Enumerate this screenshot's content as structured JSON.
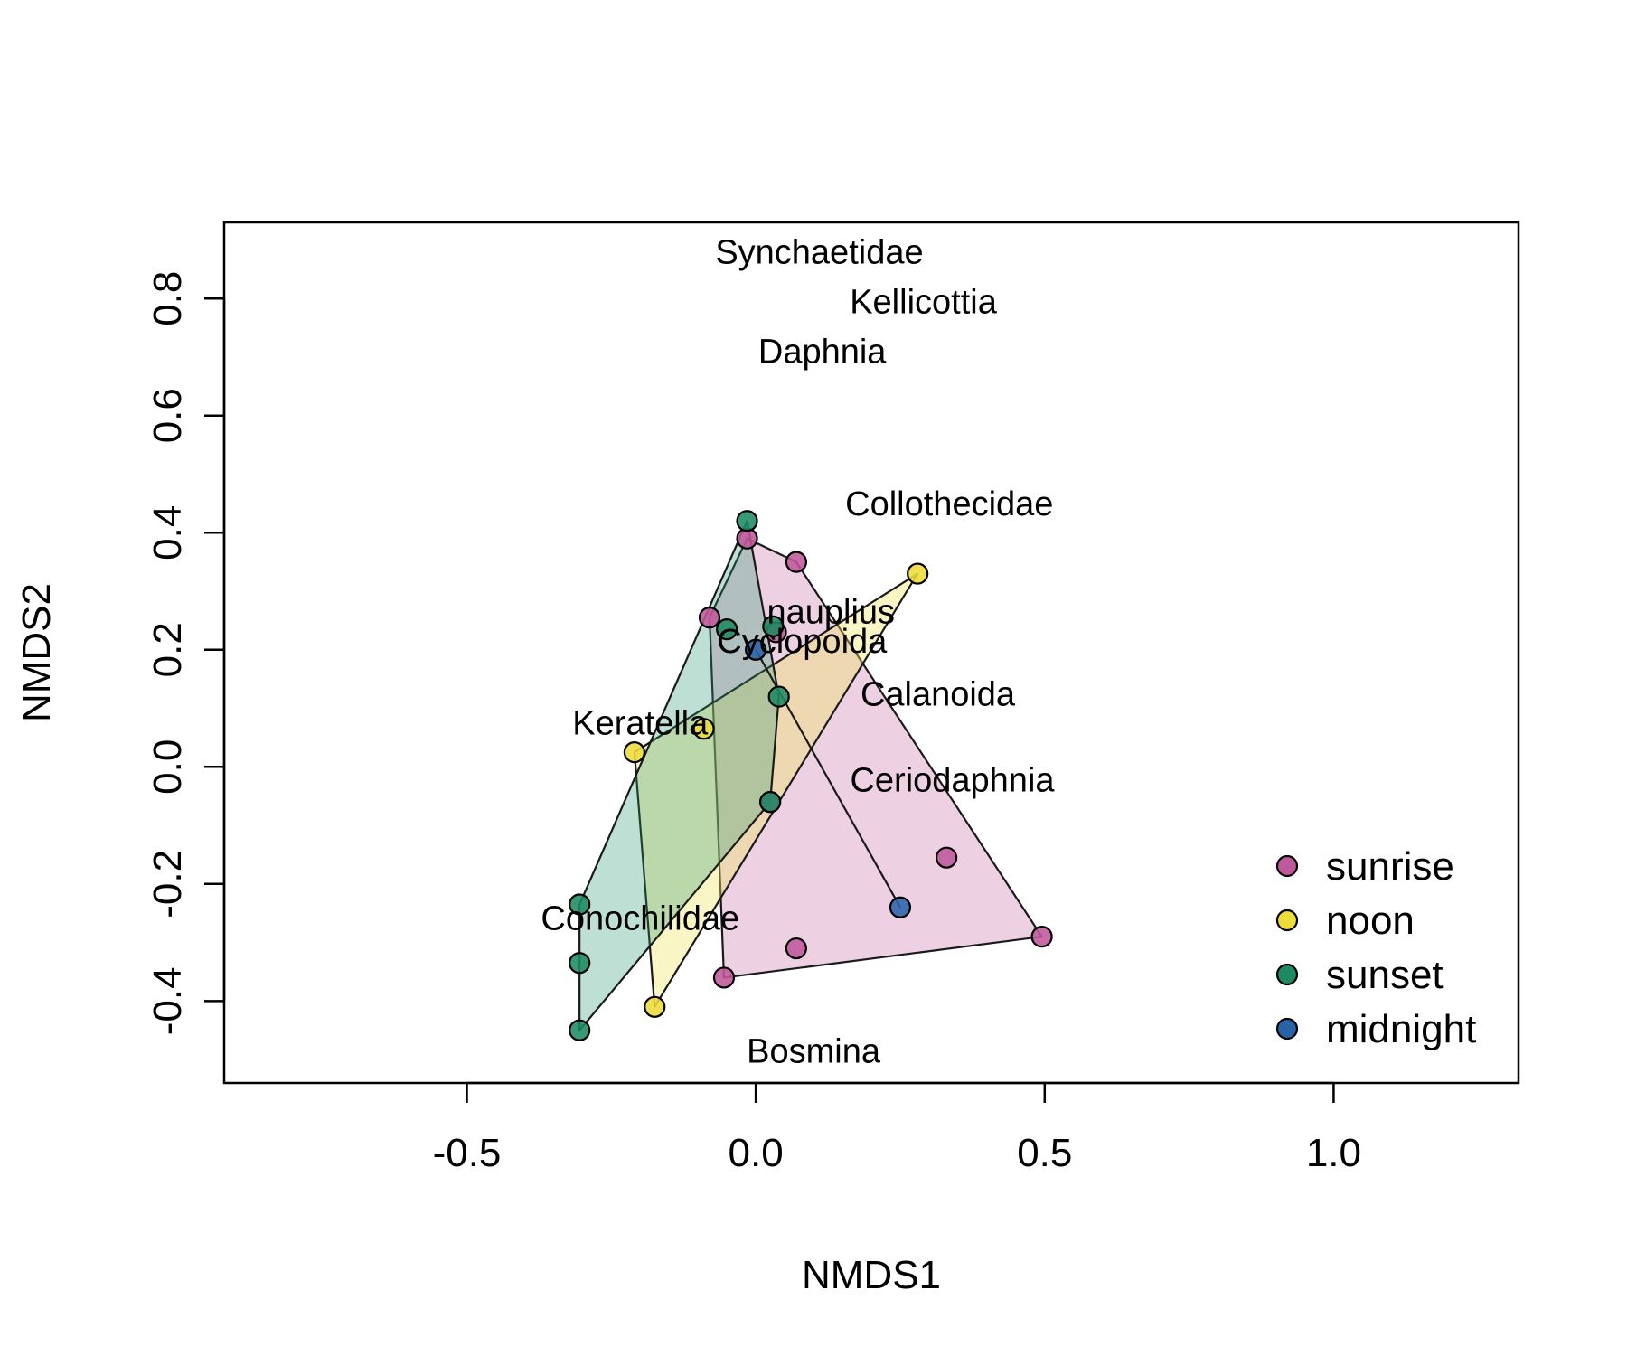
{
  "chart_data": {
    "type": "scatter",
    "xlabel": "NMDS1",
    "ylabel": "NMDS2",
    "xlim": [
      -0.92,
      1.32
    ],
    "ylim": [
      -0.54,
      0.93
    ],
    "xticks": [
      -0.5,
      0.0,
      0.5,
      1.0
    ],
    "xtick_labels": [
      "-0.5",
      "0.0",
      "0.5",
      "1.0"
    ],
    "yticks": [
      -0.4,
      -0.2,
      0.0,
      0.2,
      0.4,
      0.6,
      0.8
    ],
    "ytick_labels": [
      "-0.4",
      "-0.2",
      "0.0",
      "0.2",
      "0.4",
      "0.6",
      "0.8"
    ],
    "legend_position": "bottom-right",
    "series": [
      {
        "name": "sunrise",
        "color": "#C0589C",
        "fill": "rgba(192,88,156,0.28)",
        "hull": [
          [
            -0.015,
            0.39
          ],
          [
            0.07,
            0.35
          ],
          [
            0.495,
            -0.29
          ],
          [
            -0.055,
            -0.36
          ],
          [
            -0.08,
            0.255
          ]
        ],
        "points": [
          [
            -0.015,
            0.39
          ],
          [
            0.07,
            0.35
          ],
          [
            -0.08,
            0.255
          ],
          [
            0.035,
            0.23
          ],
          [
            0.025,
            -0.06
          ],
          [
            0.33,
            -0.155
          ],
          [
            0.07,
            -0.31
          ],
          [
            -0.055,
            -0.36
          ],
          [
            0.495,
            -0.29
          ]
        ]
      },
      {
        "name": "noon",
        "color": "#EDDC3A",
        "fill": "rgba(240,230,100,0.38)",
        "hull": [
          [
            0.28,
            0.33
          ],
          [
            -0.21,
            0.025
          ],
          [
            -0.175,
            -0.41
          ]
        ],
        "points": [
          [
            0.28,
            0.33
          ],
          [
            -0.09,
            0.065
          ],
          [
            -0.21,
            0.025
          ],
          [
            -0.175,
            -0.41
          ]
        ]
      },
      {
        "name": "sunset",
        "color": "#1E8A62",
        "fill": "rgba(40,150,110,0.30)",
        "hull": [
          [
            -0.015,
            0.42
          ],
          [
            0.04,
            0.12
          ],
          [
            0.025,
            -0.06
          ],
          [
            -0.305,
            -0.45
          ],
          [
            -0.305,
            -0.235
          ]
        ],
        "points": [
          [
            -0.015,
            0.42
          ],
          [
            -0.05,
            0.235
          ],
          [
            0.03,
            0.24
          ],
          [
            0.04,
            0.12
          ],
          [
            0.025,
            -0.06
          ],
          [
            -0.305,
            -0.235
          ],
          [
            -0.305,
            -0.335
          ],
          [
            -0.305,
            -0.45
          ]
        ]
      },
      {
        "name": "midnight",
        "color": "#2A62A8",
        "fill": "none",
        "hull": [
          [
            0.0,
            0.2
          ],
          [
            0.25,
            -0.24
          ]
        ],
        "points": [
          [
            0.0,
            0.2
          ],
          [
            0.25,
            -0.24
          ]
        ]
      }
    ],
    "species_labels": [
      {
        "text": "Synchaetidae",
        "x": 0.11,
        "y": 0.88
      },
      {
        "text": "Kellicottia",
        "x": 0.29,
        "y": 0.795
      },
      {
        "text": "Daphnia",
        "x": 0.115,
        "y": 0.71
      },
      {
        "text": "Collothecidae",
        "x": 0.335,
        "y": 0.45
      },
      {
        "text": "nauplius",
        "x": 0.13,
        "y": 0.265
      },
      {
        "text": "Cyclopoida",
        "x": 0.08,
        "y": 0.215
      },
      {
        "text": "Calanoida",
        "x": 0.315,
        "y": 0.125
      },
      {
        "text": "Keratella",
        "x": -0.2,
        "y": 0.075
      },
      {
        "text": "Ceriodaphnia",
        "x": 0.34,
        "y": -0.022
      },
      {
        "text": "Conochilidae",
        "x": -0.2,
        "y": -0.258
      },
      {
        "text": "Bosmina",
        "x": 0.1,
        "y": -0.485
      }
    ]
  }
}
